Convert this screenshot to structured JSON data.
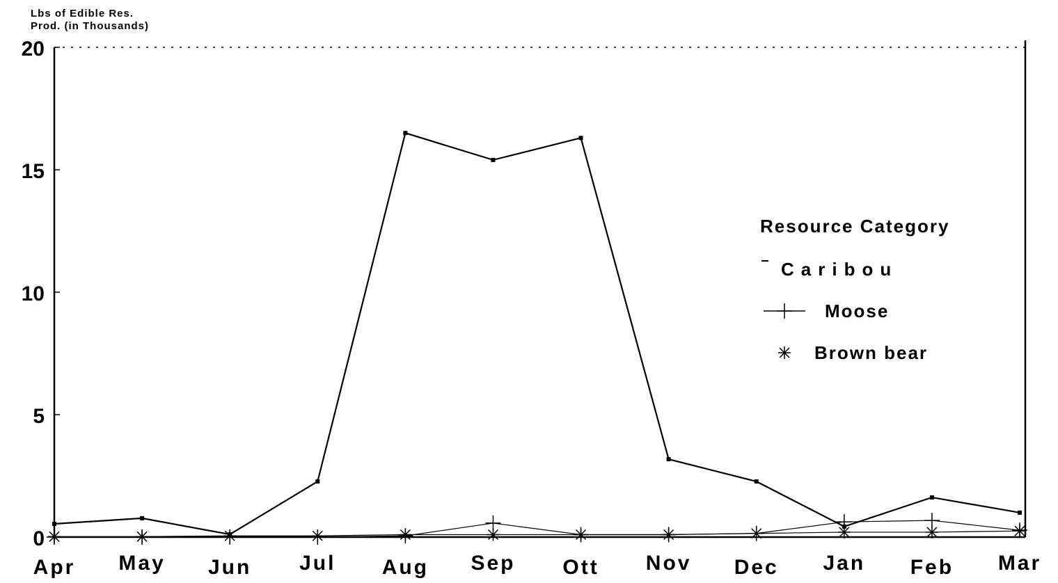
{
  "chart_data": {
    "type": "line",
    "ylabel": [
      "Lbs of Edible Res.",
      "Prod. (in Thousands)"
    ],
    "legend_title": "Resource Category",
    "categories": [
      "Apr",
      "May",
      "Jun",
      "Jul",
      "Aug",
      "Sep",
      "Ott",
      "Nov",
      "Dec",
      "Jan",
      "Feb",
      "Mar"
    ],
    "series": [
      {
        "name": "Caribou",
        "color": "#000000",
        "values": [
          0.54,
          0.77,
          0.11,
          2.27,
          16.5,
          15.4,
          16.3,
          3.18,
          2.27,
          0.43,
          1.62,
          1.0
        ]
      },
      {
        "name": "Moose",
        "color": "#000000",
        "values": [
          0,
          0,
          0,
          0,
          0.05,
          0.57,
          0.1,
          0.1,
          0.15,
          0.62,
          0.68,
          0.28
        ]
      },
      {
        "name": "Brown bear",
        "color": "#000000",
        "values": [
          0.02,
          0.02,
          0.05,
          0.05,
          0.1,
          0.1,
          0.1,
          0.1,
          0.15,
          0.2,
          0.2,
          0.25
        ]
      }
    ],
    "ylim": [
      0,
      20
    ],
    "yticks": [
      0,
      5,
      10,
      15,
      20
    ],
    "legend": "right"
  }
}
